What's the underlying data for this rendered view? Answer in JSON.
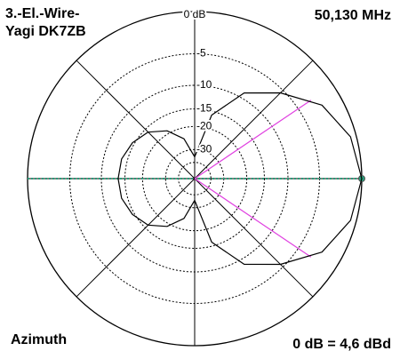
{
  "chart_data": {
    "type": "polar",
    "title": [
      "3.-El.-Wire-",
      "Yagi DK7ZB"
    ],
    "frequency": "50,130 MHz",
    "plane": "Azimuth",
    "reference": "0 dB = 4,6 dBd",
    "rlim": [
      -40,
      0
    ],
    "rticks": [
      {
        "value": 0,
        "label": "0 dB"
      },
      -5,
      -10,
      -15,
      -20,
      -30
    ],
    "spoke_angles": [
      0,
      45,
      90,
      135,
      180,
      225,
      270,
      315
    ],
    "x": [
      0,
      15,
      30,
      45,
      60,
      75,
      90,
      105,
      120,
      135,
      150,
      165,
      180,
      195,
      210,
      225,
      240,
      255,
      270,
      285,
      300,
      315,
      330,
      345
    ],
    "series": [
      {
        "color": "#000000",
        "values": [
          0,
          -0.6,
          -2.2,
          -5.5,
          -9,
          -16,
          -35,
          -24,
          -19,
          -16,
          -14.5,
          -13.6,
          -13.4,
          -13.6,
          -14.5,
          -16,
          -19,
          -24,
          -35,
          -16,
          -9,
          -5.5,
          -2.2,
          -0.6
        ]
      }
    ],
    "half_power": {
      "angles": [
        34,
        326
      ],
      "level": -3,
      "color": "#e040e0"
    },
    "main_direction": {
      "angle": 0,
      "color": "#2a9d7a"
    }
  }
}
